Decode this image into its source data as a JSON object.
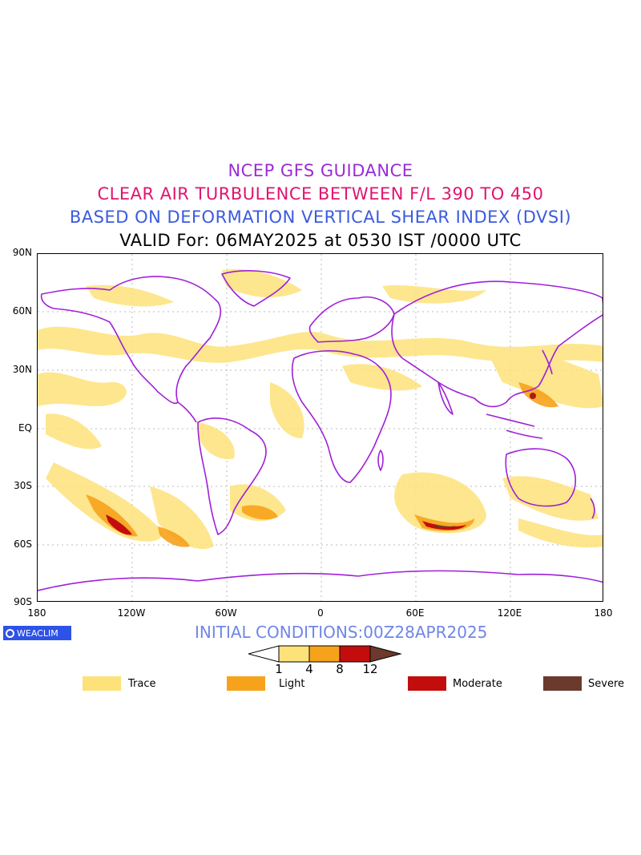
{
  "titles": {
    "line1": "NCEP GFS GUIDANCE",
    "line2": "CLEAR AIR TURBULENCE BETWEEN F/L 390 TO 450",
    "line3": "BASED ON DEFORMATION VERTICAL SHEAR INDEX (DVSI)",
    "line4": "VALID For: 06MAY2025 at 0530 IST /0000 UTC"
  },
  "axes": {
    "lat_labels": [
      "90N",
      "60N",
      "30N",
      "EQ",
      "30S",
      "60S",
      "90S"
    ],
    "lon_labels": [
      "180",
      "120W",
      "60W",
      "0",
      "60E",
      "120E",
      "180"
    ]
  },
  "badge": {
    "label": "WEACLIM",
    "icon": "circle-logo-icon"
  },
  "initial_conditions": "INITIAL CONDITIONS:00Z28APR2025",
  "colorbar": {
    "ticks": [
      "1",
      "4",
      "8",
      "12"
    ],
    "colors": [
      "#ffffff",
      "#fde27a",
      "#f7a21b",
      "#c30d0d",
      "#6b3a2c"
    ]
  },
  "legend": [
    {
      "label": "Trace",
      "color": "#fde27a"
    },
    {
      "label": "Light",
      "color": "#f7a21b"
    },
    {
      "label": "Moderate",
      "color": "#c30d0d"
    },
    {
      "label": "Severe",
      "color": "#6b3a2c"
    }
  ],
  "map": {
    "coast_color": "#a020d8",
    "grid_color": "#bbbbbb"
  }
}
